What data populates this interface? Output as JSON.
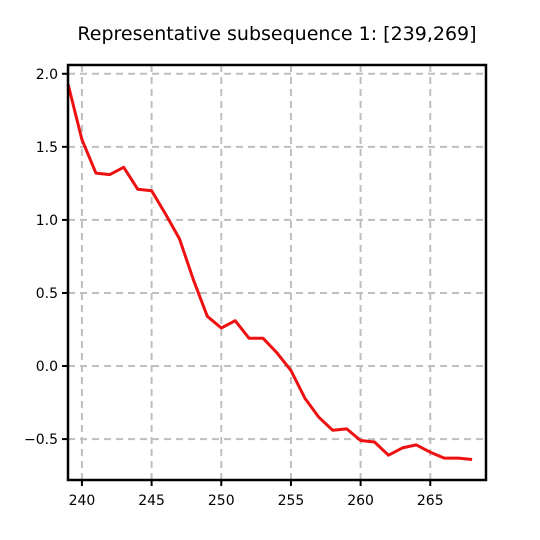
{
  "chart_data": {
    "type": "line",
    "title": "Representative subsequence 1: [239,269]",
    "xlabel": "",
    "ylabel": "",
    "xlim": [
      239,
      269
    ],
    "ylim": [
      -0.78,
      2.06
    ],
    "grid": true,
    "x_ticks": [
      240,
      245,
      250,
      255,
      260,
      265
    ],
    "y_ticks": [
      2.0,
      1.5,
      1.0,
      0.5,
      0.0,
      -0.5
    ],
    "x_tick_labels": [
      "240",
      "245",
      "250",
      "255",
      "260",
      "265"
    ],
    "y_tick_labels": [
      "2.0",
      "1.5",
      "1.0",
      "0.5",
      "0.0",
      "−0.5"
    ],
    "series": [
      {
        "color": "#ee1111",
        "x": [
          239,
          240,
          241,
          242,
          243,
          244,
          245,
          246,
          247,
          248,
          249,
          250,
          251,
          252,
          253,
          254,
          255,
          256,
          257,
          258,
          259,
          260,
          261,
          262,
          263,
          264,
          265,
          266,
          267,
          268
        ],
        "values": [
          1.93,
          1.55,
          1.32,
          1.31,
          1.36,
          1.21,
          1.2,
          1.04,
          0.87,
          0.59,
          0.34,
          0.26,
          0.31,
          0.19,
          0.19,
          0.09,
          -0.03,
          -0.22,
          -0.35,
          -0.44,
          -0.43,
          -0.51,
          -0.52,
          -0.61,
          -0.56,
          -0.54,
          -0.59,
          -0.63,
          -0.63,
          -0.64
        ]
      }
    ]
  }
}
